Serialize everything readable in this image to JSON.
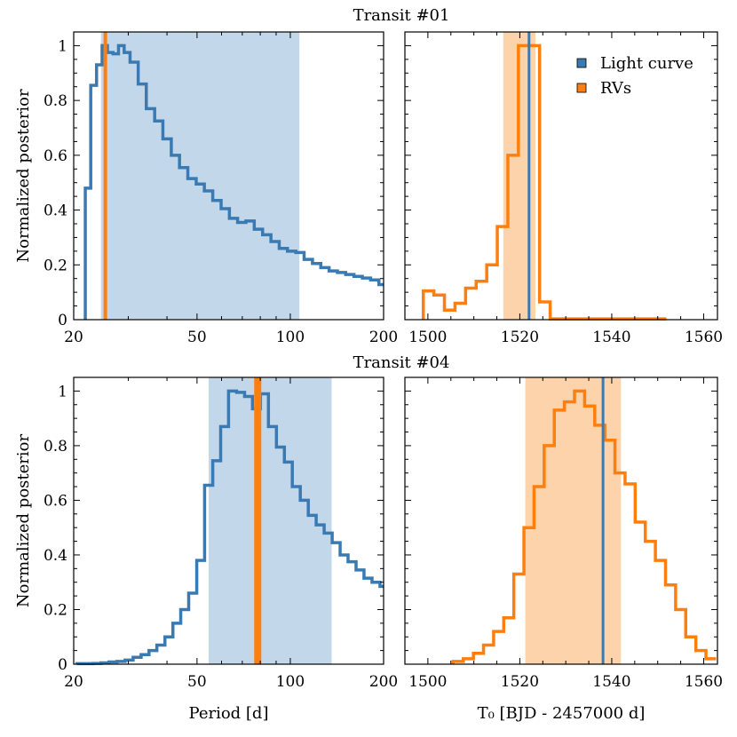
{
  "chart_data": [
    {
      "type": "line",
      "row_title": "Transit #01",
      "xscale": "log",
      "xlim": [
        20,
        200
      ],
      "ylim": [
        0,
        1.05
      ],
      "xticks": [
        20,
        50,
        100,
        200
      ],
      "xtick_labels": [
        "20",
        "50",
        "100",
        "200"
      ],
      "yticks": [
        0,
        0.2,
        0.4,
        0.6,
        0.8,
        1
      ],
      "ytick_labels": [
        "0",
        "0.2",
        "0.4",
        "0.6",
        "0.8",
        "1"
      ],
      "xlabel": "",
      "ylabel": "Normalized posterior",
      "band": {
        "color": "#c3d7ea",
        "x_range": [
          24.5,
          107
        ]
      },
      "vlines": [
        {
          "color": "#ff7f0e",
          "x": 25.3,
          "width": 4
        }
      ],
      "series": [
        {
          "color": "#3a7ab3",
          "edges": [
            21.8,
            22.7,
            23.7,
            24.7,
            25.7,
            26.8,
            27.9,
            29.1,
            30.4,
            32.3,
            34.3,
            36.5,
            38.8,
            41.3,
            43.9,
            46.7,
            49.7,
            52.8,
            56.2,
            59.8,
            63.6,
            67.6,
            71.9,
            76.5,
            81.4,
            86.6,
            92.1,
            97.9,
            104.2,
            110.8,
            117.9,
            125.4,
            133.4,
            141.9,
            150.9,
            160.5,
            170.8,
            181.6,
            193.2,
            200
          ],
          "values": [
            0.48,
            0.855,
            0.93,
            1.0,
            0.975,
            0.97,
            1.0,
            0.975,
            0.94,
            0.86,
            0.77,
            0.725,
            0.66,
            0.6,
            0.555,
            0.515,
            0.495,
            0.47,
            0.435,
            0.405,
            0.37,
            0.355,
            0.36,
            0.33,
            0.31,
            0.285,
            0.26,
            0.25,
            0.245,
            0.22,
            0.205,
            0.19,
            0.178,
            0.172,
            0.165,
            0.158,
            0.152,
            0.145,
            0.128
          ]
        }
      ]
    },
    {
      "type": "line",
      "row_title": "",
      "xscale": "linear",
      "xlim": [
        1495,
        1563
      ],
      "ylim": [
        0,
        1.05
      ],
      "xticks": [
        1500,
        1520,
        1540,
        1560
      ],
      "xtick_labels": [
        "1500",
        "1520",
        "1540",
        "1560"
      ],
      "yticks": [
        0,
        0.2,
        0.4,
        0.6,
        0.8,
        1
      ],
      "xlabel": "",
      "ylabel": "",
      "band": {
        "color": "#fcd3ab",
        "x_range": [
          1516.4,
          1523.4
        ]
      },
      "vlines": [
        {
          "color": "#3a7ab3",
          "x": 1522.0,
          "width": 3
        }
      ],
      "legend": {
        "position": "top-right",
        "entries": [
          {
            "label": "Light curve",
            "color": "#3a7ab3"
          },
          {
            "label": "RVs",
            "color": "#ff7f0e"
          }
        ]
      },
      "series": [
        {
          "color": "#ff7f0e",
          "edges": [
            1499.0,
            1501.3,
            1503.6,
            1505.9,
            1508.2,
            1510.5,
            1512.8,
            1515.1,
            1517.4,
            1519.7,
            1522.0,
            1524.3,
            1526.6,
            1528.9,
            1531.2,
            1533.5,
            1535.8,
            1538.1,
            1540.4,
            1542.7,
            1545.0,
            1547.3,
            1549.6,
            1551.9
          ],
          "values": [
            0.105,
            0.09,
            0.035,
            0.06,
            0.115,
            0.14,
            0.2,
            0.34,
            0.6,
            1.0,
            1.0,
            0.065,
            0.003,
            0.003,
            0.003,
            0.003,
            0.003,
            0.003,
            0.003,
            0.003,
            0.003,
            0.003,
            0.003
          ]
        }
      ]
    },
    {
      "type": "line",
      "row_title": "Transit #04",
      "xscale": "log",
      "xlim": [
        20,
        200
      ],
      "ylim": [
        0,
        1.05
      ],
      "xticks": [
        20,
        50,
        100,
        200
      ],
      "xtick_labels": [
        "20",
        "50",
        "100",
        "200"
      ],
      "yticks": [
        0,
        0.2,
        0.4,
        0.6,
        0.8,
        1
      ],
      "ytick_labels": [
        "0",
        "0.2",
        "0.4",
        "0.6",
        "0.8",
        "1"
      ],
      "xlabel": "Period [d]",
      "ylabel": "Normalized posterior",
      "band": {
        "color": "#c3d7ea",
        "x_range": [
          54.5,
          136
        ]
      },
      "vlines": [
        {
          "color": "#ff7f0e",
          "x": 78.5,
          "width": 8
        }
      ],
      "series": [
        {
          "color": "#3a7ab3",
          "edges": [
            20.5,
            21.8,
            23.1,
            24.5,
            26.0,
            27.6,
            29.3,
            31.1,
            33.0,
            35.0,
            37.1,
            39.4,
            41.8,
            44.3,
            47.0,
            49.9,
            52.9,
            56.2,
            59.6,
            63.2,
            67.1,
            71.2,
            75.5,
            80.1,
            85.0,
            90.2,
            95.7,
            101.5,
            107.7,
            114.3,
            121.2,
            128.6,
            136.5,
            144.8,
            153.6,
            163.0,
            172.9,
            183.5,
            194.7,
            200
          ],
          "values": [
            0.002,
            0.002,
            0.003,
            0.005,
            0.008,
            0.01,
            0.015,
            0.025,
            0.035,
            0.05,
            0.07,
            0.1,
            0.15,
            0.2,
            0.26,
            0.38,
            0.655,
            0.745,
            0.87,
            1.0,
            0.995,
            0.98,
            0.935,
            0.99,
            0.87,
            0.795,
            0.74,
            0.65,
            0.6,
            0.545,
            0.51,
            0.48,
            0.445,
            0.4,
            0.375,
            0.345,
            0.315,
            0.3,
            0.285
          ]
        }
      ]
    },
    {
      "type": "line",
      "row_title": "",
      "xscale": "linear",
      "xlim": [
        1495,
        1563
      ],
      "ylim": [
        0,
        1.05
      ],
      "xticks": [
        1500,
        1520,
        1540,
        1560
      ],
      "xtick_labels": [
        "1500",
        "1520",
        "1540",
        "1560"
      ],
      "yticks": [
        0,
        0.2,
        0.4,
        0.6,
        0.8,
        1
      ],
      "xlabel": "T₀ [BJD - 2457000 d]",
      "ylabel": "",
      "band": {
        "color": "#fcd3ab",
        "x_range": [
          1521.2,
          1542.0
        ]
      },
      "vlines": [
        {
          "color": "#3a7ab3",
          "x": 1538.1,
          "width": 3
        }
      ],
      "series": [
        {
          "color": "#ff7f0e",
          "edges": [
            1505.5,
            1507.7,
            1509.9,
            1512.1,
            1514.3,
            1516.5,
            1518.7,
            1520.9,
            1523.1,
            1525.3,
            1527.5,
            1529.7,
            1531.9,
            1534.1,
            1536.3,
            1538.5,
            1540.7,
            1542.9,
            1545.1,
            1547.3,
            1549.5,
            1551.7,
            1553.9,
            1556.1,
            1558.3,
            1560.5,
            1562.7
          ],
          "values": [
            0.01,
            0.02,
            0.04,
            0.07,
            0.12,
            0.17,
            0.33,
            0.5,
            0.65,
            0.8,
            0.93,
            0.96,
            1.0,
            0.945,
            0.875,
            0.82,
            0.7,
            0.66,
            0.52,
            0.45,
            0.38,
            0.29,
            0.2,
            0.1,
            0.05,
            0.02
          ]
        }
      ]
    }
  ]
}
